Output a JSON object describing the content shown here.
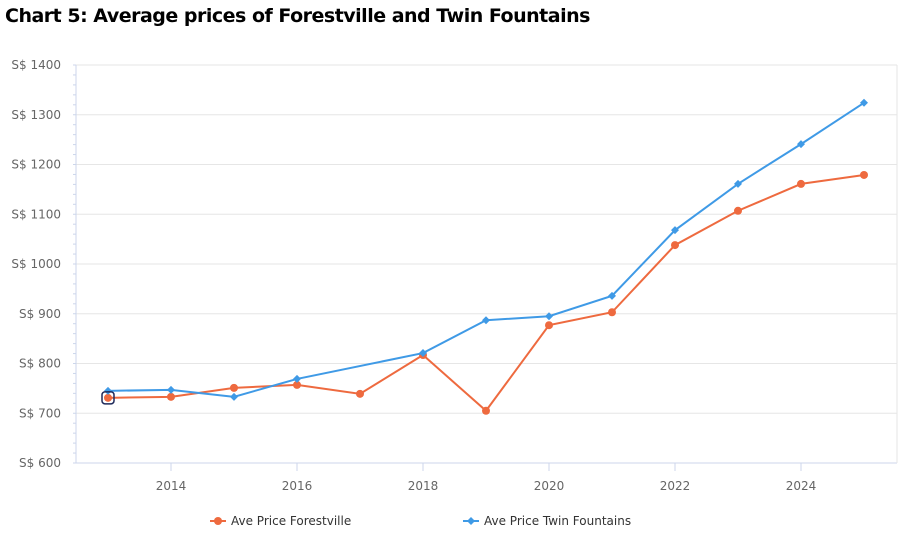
{
  "chart_data": {
    "type": "line",
    "title": "Chart 5: Average prices of Forestville and Twin Fountains",
    "xlabel": "",
    "ylabel": "",
    "x": [
      2013,
      2014,
      2015,
      2016,
      2017,
      2018,
      2019,
      2020,
      2021,
      2022,
      2023,
      2024,
      2025
    ],
    "xlim": [
      2012.5,
      2025.5
    ],
    "ylim": [
      600,
      1400
    ],
    "x_ticks": [
      2014,
      2016,
      2018,
      2020,
      2022,
      2024
    ],
    "x_tick_labels": [
      "2014",
      "2016",
      "2018",
      "2020",
      "2022",
      "2024"
    ],
    "y_ticks": [
      600,
      700,
      800,
      900,
      1000,
      1100,
      1200,
      1300,
      1400
    ],
    "y_tick_labels": [
      "S$ 600",
      "S$ 700",
      "S$ 800",
      "S$ 900",
      "S$ 1000",
      "S$ 1100",
      "S$ 1200",
      "S$ 1300",
      "S$ 1400"
    ],
    "grid": true,
    "legend_position": "bottom",
    "series": [
      {
        "name": "Ave Price Forestville",
        "color": "#ee6a3f",
        "marker": "circle",
        "values": [
          731,
          733,
          751,
          757,
          739,
          817,
          705,
          877,
          903,
          1038,
          1107,
          1161,
          1179
        ]
      },
      {
        "name": "Ave Price Twin Fountains",
        "color": "#3f9ae6",
        "marker": "diamond",
        "values": [
          745,
          747,
          733,
          769,
          null,
          821,
          887,
          895,
          936,
          1068,
          1161,
          1241,
          1324
        ]
      }
    ]
  }
}
